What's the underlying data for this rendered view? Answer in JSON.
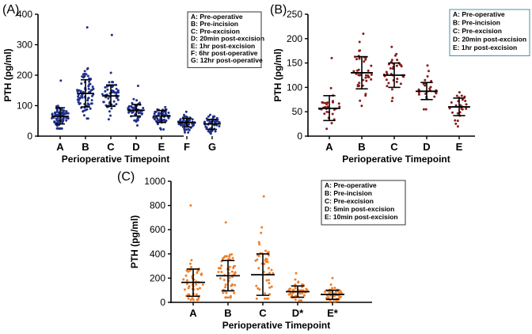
{
  "chart_data": [
    {
      "panel": "(A)",
      "type": "scatter",
      "ylabel": "PTH (pg/ml)",
      "xlabel": "Perioperative Timepoint",
      "categories": [
        "A",
        "B",
        "C",
        "D",
        "E",
        "F",
        "G"
      ],
      "ylim": [
        0,
        400
      ],
      "yticks": [
        0,
        100,
        200,
        300,
        400
      ],
      "point_color": "#1f2f8a",
      "legend": [
        "A: Pre-operative",
        "B: Pre-incision",
        "C: Pre-excision",
        "D: 20min post-excision",
        "E: 1hr post-excision",
        "F: 6hr post-operative",
        "G: 12hr post-operative"
      ],
      "series": [
        {
          "name": "A",
          "mean": 65,
          "sd_low": 40,
          "sd_high": 93,
          "min": 25,
          "max": 182,
          "n": 80
        },
        {
          "name": "B",
          "mean": 140,
          "sd_low": 96,
          "sd_high": 185,
          "min": 58,
          "max": 357,
          "n": 80
        },
        {
          "name": "C",
          "mean": 132,
          "sd_low": 98,
          "sd_high": 168,
          "min": 55,
          "max": 332,
          "n": 60
        },
        {
          "name": "D",
          "mean": 85,
          "sd_low": 66,
          "sd_high": 104,
          "min": 35,
          "max": 165,
          "n": 60
        },
        {
          "name": "E",
          "mean": 66,
          "sd_low": 45,
          "sd_high": 84,
          "min": 22,
          "max": 95,
          "n": 60
        },
        {
          "name": "F",
          "mean": 45,
          "sd_low": 30,
          "sd_high": 58,
          "min": 12,
          "max": 80,
          "n": 60
        },
        {
          "name": "G",
          "mean": 40,
          "sd_low": 22,
          "sd_high": 55,
          "min": 8,
          "max": 70,
          "n": 55
        }
      ]
    },
    {
      "panel": "(B)",
      "type": "scatter",
      "ylabel": "PTH (pg/ml)",
      "xlabel": "Perioperative Timepoint",
      "categories": [
        "A",
        "B",
        "C",
        "D",
        "E"
      ],
      "ylim": [
        0,
        250
      ],
      "yticks": [
        0,
        50,
        100,
        150,
        200,
        250
      ],
      "point_color": "#8b1a1a",
      "legend": [
        "A: Pre-operative",
        "B: Pre-incision",
        "C: Pre-excision",
        "D: 20min post-excision",
        "E: 1hr post-excision"
      ],
      "series": [
        {
          "name": "A",
          "mean": 57,
          "sd_low": 32,
          "sd_high": 83,
          "min": 15,
          "max": 160,
          "n": 30
        },
        {
          "name": "B",
          "mean": 130,
          "sd_low": 97,
          "sd_high": 163,
          "min": 62,
          "max": 210,
          "n": 40
        },
        {
          "name": "C",
          "mean": 125,
          "sd_low": 100,
          "sd_high": 150,
          "min": 72,
          "max": 183,
          "n": 35
        },
        {
          "name": "D",
          "mean": 92,
          "sd_low": 75,
          "sd_high": 110,
          "min": 55,
          "max": 145,
          "n": 25
        },
        {
          "name": "E",
          "mean": 60,
          "sd_low": 42,
          "sd_high": 78,
          "min": 20,
          "max": 90,
          "n": 25
        }
      ]
    },
    {
      "panel": "(C)",
      "type": "scatter",
      "ylabel": "PTH (pg/ml)",
      "xlabel": "Perioperative Timepoint",
      "categories": [
        "A",
        "B",
        "C",
        "D*",
        "E*"
      ],
      "ylim": [
        0,
        1000
      ],
      "yticks": [
        0,
        200,
        400,
        600,
        800,
        1000
      ],
      "point_color": "#f07f2a",
      "legend": [
        "A: Pre-operative",
        "B: Pre-incision",
        "C: Pre-excision",
        "D: 5min post-excision",
        "E: 10min post-excision"
      ],
      "series": [
        {
          "name": "A",
          "mean": 165,
          "sd_low": 50,
          "sd_high": 275,
          "min": 20,
          "max": 800,
          "n": 50
        },
        {
          "name": "B",
          "mean": 220,
          "sd_low": 95,
          "sd_high": 345,
          "min": 40,
          "max": 660,
          "n": 55
        },
        {
          "name": "C",
          "mean": 228,
          "sd_low": 58,
          "sd_high": 400,
          "min": 30,
          "max": 875,
          "n": 45
        },
        {
          "name": "D*",
          "mean": 88,
          "sd_low": 42,
          "sd_high": 135,
          "min": 15,
          "max": 240,
          "n": 50
        },
        {
          "name": "E*",
          "mean": 65,
          "sd_low": 25,
          "sd_high": 100,
          "min": 8,
          "max": 200,
          "n": 50
        }
      ]
    }
  ]
}
